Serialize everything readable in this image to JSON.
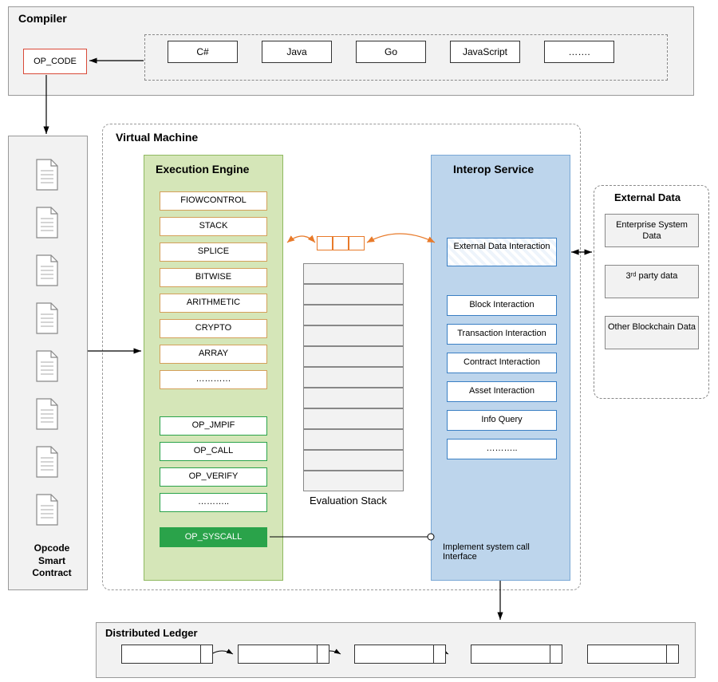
{
  "compiler": {
    "title": "Compiler",
    "op_code": "OP_CODE",
    "languages": [
      "C#",
      "Java",
      "Go",
      "JavaScript",
      "……."
    ]
  },
  "opcode_contract": {
    "label": "Opcode\nSmart\nContract"
  },
  "virtual_machine": {
    "title": "Virtual Machine",
    "execution_engine": {
      "title": "Execution Engine",
      "category_boxes": [
        "FIOWCONTROL",
        "STACK",
        "SPLICE",
        "BITWISE",
        "ARITHMETIC",
        "CRYPTO",
        "ARRAY",
        "…………"
      ],
      "op_boxes": [
        "OP_JMPIF",
        "OP_CALL",
        "OP_VERIFY",
        "……….."
      ],
      "syscall": "OP_SYSCALL"
    },
    "evaluation_stack": {
      "label": "Evaluation Stack"
    },
    "interop_service": {
      "title": "Interop Service",
      "ext_data_interaction": "External Data Interaction",
      "boxes": [
        "Block Interaction",
        "Transaction Interaction",
        "Contract Interaction",
        "Asset Interaction",
        "Info Query",
        "……….."
      ]
    },
    "impl_label": "Implement system call\nInterface"
  },
  "external_data": {
    "title": "External Data",
    "boxes": [
      "Enterprise System Data",
      "3ʳᵈ party data",
      "Other Blockchain Data"
    ]
  },
  "distributed_ledger": {
    "title": "Distributed Ledger"
  },
  "colors": {
    "panel_bg": "#f2f2f2",
    "panel_border": "#999999",
    "dashed_border": "#888888",
    "opcode_border": "#d94a38",
    "exec_panel_bg": "#d5e6b8",
    "exec_panel_border": "#8fb960",
    "exec_box_border": "#d4a05a",
    "green_box_border": "#2aa34a",
    "syscall_bg": "#2aa34a",
    "interop_panel_bg": "#bdd5ec",
    "interop_panel_border": "#7aa8d6",
    "interop_box_border": "#3a7fc4",
    "orange_arrow": "#e87a2a",
    "black": "#000000"
  }
}
